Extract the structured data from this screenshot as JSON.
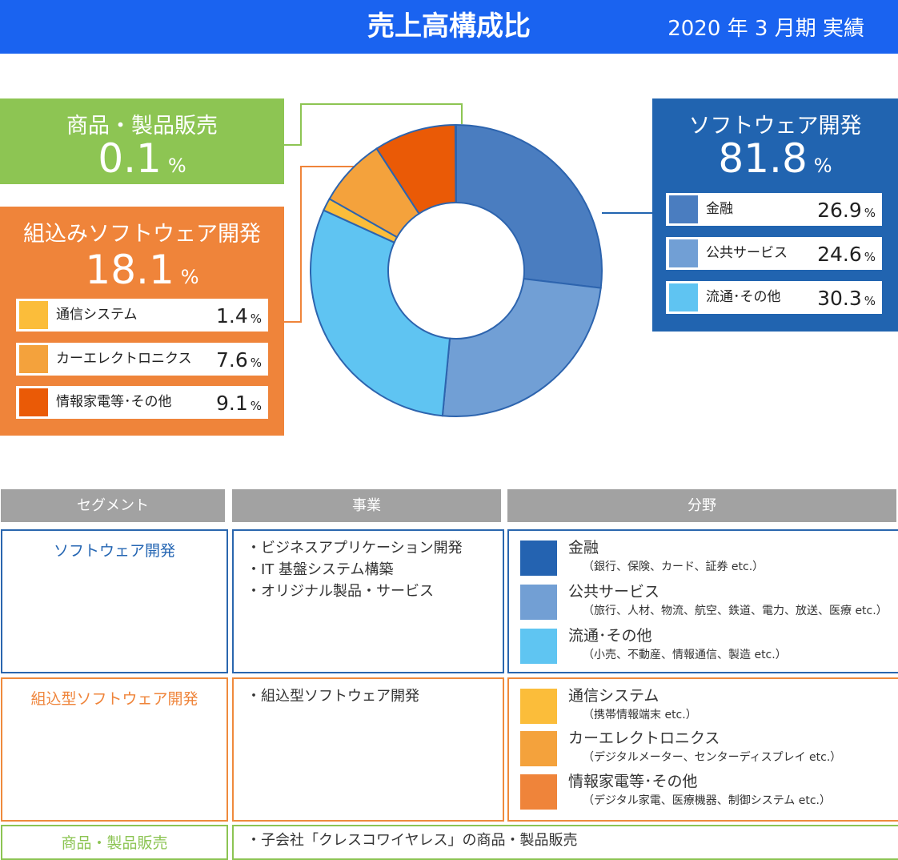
{
  "header": {
    "title": "売上高構成比",
    "period": "2020 年 3 月期 実績"
  },
  "callouts": {
    "goods": {
      "title": "商品・製品販売",
      "pct": "0.1",
      "unit": "%"
    },
    "embedded": {
      "title": "組込みソフトウェア開発",
      "pct": "18.1",
      "unit": "%",
      "items": [
        {
          "label": "通信システム",
          "value": "1.4",
          "unit": "%"
        },
        {
          "label": "カーエレクトロニクス",
          "value": "7.6",
          "unit": "%"
        },
        {
          "label": "情報家電等･その他",
          "value": "9.1",
          "unit": "%"
        }
      ]
    },
    "software": {
      "title": "ソフトウェア開発",
      "pct": "81.8",
      "unit": "%",
      "items": [
        {
          "label": "金融",
          "value": "26.9",
          "unit": "%"
        },
        {
          "label": "公共サービス",
          "value": "24.6",
          "unit": "%"
        },
        {
          "label": "流通･その他",
          "value": "30.3",
          "unit": "%"
        }
      ]
    }
  },
  "colors": {
    "finance": "#4a7dc0",
    "public": "#719fd5",
    "retail": "#5fc4f2",
    "telecom": "#fbbd3a",
    "car": "#f4a23c",
    "appliance": "#ea5a06",
    "goods": "#8dc553",
    "ring_border": "#2d64ae",
    "sw_border": "#2a66ae",
    "emb_border": "#ef8a3c",
    "goods_border": "#8cc453"
  },
  "chart_data": {
    "type": "pie",
    "donut": true,
    "title": "売上高構成比",
    "slices": [
      {
        "label": "金融",
        "value": 26.9,
        "color": "#4a7dc0"
      },
      {
        "label": "公共サービス",
        "value": 24.6,
        "color": "#719fd5"
      },
      {
        "label": "流通･その他",
        "value": 30.3,
        "color": "#5fc4f2"
      },
      {
        "label": "通信システム",
        "value": 1.4,
        "color": "#fbbd3a"
      },
      {
        "label": "カーエレクトロニクス",
        "value": 7.6,
        "color": "#f4a23c"
      },
      {
        "label": "情報家電等･その他",
        "value": 9.1,
        "color": "#ea5a06"
      },
      {
        "label": "商品・製品販売",
        "value": 0.1,
        "color": "#8dc553"
      }
    ]
  },
  "table": {
    "headers": [
      "セグメント",
      "事業",
      "分野"
    ],
    "rows": [
      {
        "segment": "ソフトウェア開発",
        "business": [
          "・ビジネスアプリケーション開発",
          "・IT 基盤システム構築",
          "・オリジナル製品・サービス"
        ],
        "fields": [
          {
            "name": "金融",
            "desc": "（銀行、保険、カード、証券 etc.）",
            "color": "#2463b1"
          },
          {
            "name": "公共サービス",
            "desc": "（旅行、人材、物流、航空、鉄道、電力、放送、医療 etc.）",
            "color": "#729fd4"
          },
          {
            "name": "流通･その他",
            "desc": "（小売、不動産、情報通信、製造 etc.）",
            "color": "#5fc5f2"
          }
        ]
      },
      {
        "segment": "組込型ソフトウェア開発",
        "business": [
          "・組込型ソフトウェア開発"
        ],
        "fields": [
          {
            "name": "通信システム",
            "desc": "（携帯情報端末 etc.）",
            "color": "#fbbd3a"
          },
          {
            "name": "カーエレクトロニクス",
            "desc": "（デジタルメーター、センターディスプレイ etc.）",
            "color": "#f4a23c"
          },
          {
            "name": "情報家電等･その他",
            "desc": "（デジタル家電、医療機器、制御システム etc.）",
            "color": "#ef843a"
          }
        ]
      },
      {
        "segment": "商品・製品販売",
        "business": [
          "・子会社「クレスコワイヤレス」の商品・製品販売"
        ]
      }
    ]
  }
}
